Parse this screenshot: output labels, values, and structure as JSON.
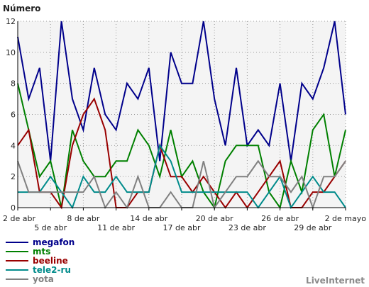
{
  "chart_data": {
    "type": "line",
    "ylabel": "Número",
    "ylim": [
      0,
      12
    ],
    "yticks": [
      0,
      2,
      4,
      6,
      8,
      10,
      12
    ],
    "grid": true,
    "x_count": 31,
    "x_tick_labels": [
      {
        "i": 0,
        "label": "2 de abr",
        "row": 1
      },
      {
        "i": 3,
        "label": "5 de abr",
        "row": 2
      },
      {
        "i": 6,
        "label": "8 de abr",
        "row": 1
      },
      {
        "i": 9,
        "label": "11 de abr",
        "row": 2
      },
      {
        "i": 12,
        "label": "14 de abr",
        "row": 1
      },
      {
        "i": 15,
        "label": "17 de abr",
        "row": 2
      },
      {
        "i": 18,
        "label": "20 de abr",
        "row": 1
      },
      {
        "i": 21,
        "label": "23 de abr",
        "row": 2
      },
      {
        "i": 24,
        "label": "26 de abr",
        "row": 1
      },
      {
        "i": 27,
        "label": "29 de abr",
        "row": 2
      },
      {
        "i": 30,
        "label": "2 de mayo",
        "row": 1
      }
    ],
    "series": [
      {
        "name": "megafon",
        "color": "#00008b",
        "values": [
          11,
          7,
          9,
          3,
          12,
          7,
          5,
          9,
          6,
          5,
          8,
          7,
          9,
          3,
          10,
          8,
          8,
          12,
          7,
          4,
          9,
          4,
          5,
          4,
          8,
          3,
          8,
          7,
          9,
          12,
          6
        ]
      },
      {
        "name": "mts",
        "color": "#008000",
        "values": [
          8,
          5,
          2,
          3,
          0,
          5,
          3,
          2,
          2,
          3,
          3,
          5,
          4,
          2,
          5,
          2,
          3,
          1,
          0,
          3,
          4,
          4,
          4,
          1,
          0,
          3,
          1,
          5,
          6,
          2,
          5
        ]
      },
      {
        "name": "beeline",
        "color": "#990000",
        "values": [
          4,
          5,
          1,
          1,
          0,
          4,
          6,
          7,
          5,
          0,
          0,
          1,
          1,
          4,
          2,
          2,
          1,
          2,
          1,
          0,
          1,
          0,
          1,
          2,
          3,
          0,
          0,
          1,
          1,
          2,
          3
        ]
      },
      {
        "name": "tele2-ru",
        "color": "#008b8b",
        "values": [
          1,
          1,
          1,
          2,
          1,
          0,
          2,
          1,
          1,
          2,
          1,
          1,
          1,
          4,
          3,
          1,
          1,
          1,
          1,
          1,
          1,
          1,
          0,
          1,
          2,
          0,
          1,
          2,
          1,
          1,
          0
        ]
      },
      {
        "name": "yota",
        "color": "#808080",
        "values": [
          3,
          1,
          1,
          1,
          1,
          1,
          1,
          2,
          0,
          1,
          0,
          2,
          0,
          0,
          1,
          0,
          0,
          3,
          0,
          1,
          2,
          2,
          3,
          2,
          2,
          1,
          2,
          0,
          2,
          2,
          3
        ]
      }
    ]
  },
  "legend": [
    "megafon",
    "mts",
    "beeline",
    "tele2-ru",
    "yota"
  ],
  "credit": "LiveInternet"
}
